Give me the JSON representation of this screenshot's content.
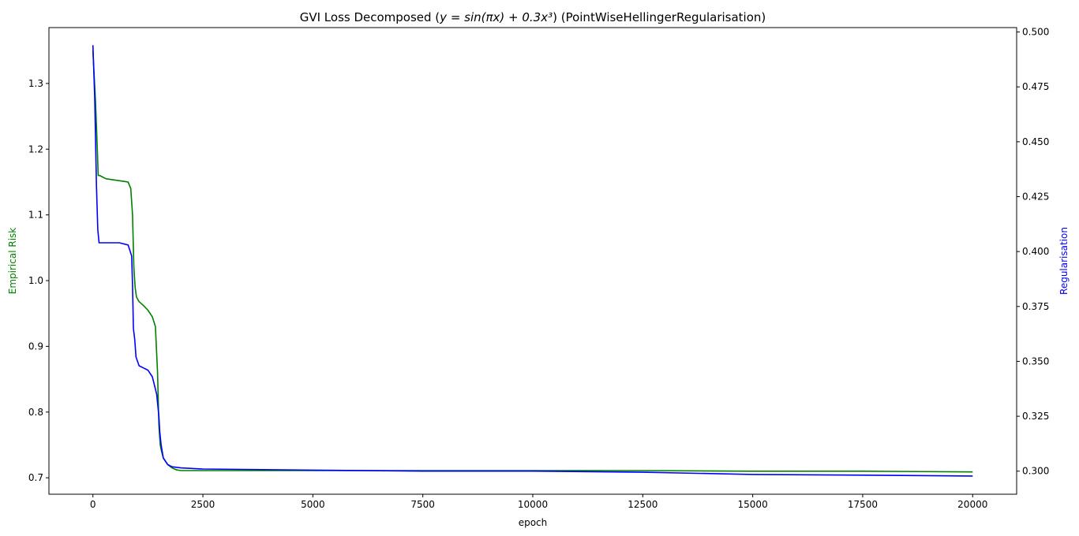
{
  "chart_data": {
    "type": "line",
    "title_main": "GVI Loss Decomposed (",
    "title_math": "y = sin(πx) + 0.3x³",
    "title_suffix": ") (PointWiseHellingerRegularisation)",
    "xlabel": "epoch",
    "ylabel_left": "Empirical Risk",
    "ylabel_right": "Regularisation",
    "xlim": [
      -1000,
      21000
    ],
    "ylim_left": [
      0.675,
      1.385
    ],
    "ylim_right": [
      0.2895,
      0.502
    ],
    "x_ticks": [
      "0",
      "2500",
      "5000",
      "7500",
      "10000",
      "12500",
      "15000",
      "17500",
      "20000"
    ],
    "y_left_ticks": [
      "0.7",
      "0.8",
      "0.9",
      "1.0",
      "1.1",
      "1.2",
      "1.3"
    ],
    "y_right_ticks": [
      "0.300",
      "0.325",
      "0.350",
      "0.375",
      "0.400",
      "0.425",
      "0.450",
      "0.475",
      "0.500"
    ],
    "grid": false,
    "colors": {
      "empirical_risk": "#008000",
      "regularisation": "#0000ff",
      "axes": "#000000"
    },
    "series": [
      {
        "name": "Empirical Risk",
        "axis": "left",
        "x": [
          0,
          60,
          100,
          120,
          150,
          300,
          500,
          700,
          800,
          860,
          900,
          930,
          960,
          990,
          1050,
          1150,
          1250,
          1350,
          1420,
          1470,
          1500,
          1530,
          1560,
          1600,
          1650,
          1700,
          1800,
          1900,
          2000,
          2500,
          5000,
          7500,
          10000,
          12500,
          15000,
          17500,
          20000
        ],
        "values": [
          1.35,
          1.27,
          1.2,
          1.16,
          1.16,
          1.155,
          1.153,
          1.151,
          1.15,
          1.14,
          1.1,
          1.02,
          0.99,
          0.975,
          0.968,
          0.962,
          0.955,
          0.945,
          0.93,
          0.86,
          0.78,
          0.75,
          0.74,
          0.73,
          0.725,
          0.72,
          0.715,
          0.712,
          0.711,
          0.711,
          0.711,
          0.711,
          0.711,
          0.711,
          0.71,
          0.71,
          0.709
        ]
      },
      {
        "name": "Regularisation",
        "axis": "right",
        "x": [
          0,
          40,
          80,
          110,
          140,
          200,
          400,
          600,
          800,
          880,
          900,
          920,
          950,
          980,
          1050,
          1150,
          1250,
          1350,
          1450,
          1500,
          1520,
          1550,
          1600,
          1700,
          1800,
          2000,
          2500,
          5000,
          7500,
          10000,
          12500,
          15000,
          17500,
          20000
        ],
        "values": [
          0.494,
          0.47,
          0.43,
          0.41,
          0.404,
          0.404,
          0.404,
          0.404,
          0.403,
          0.398,
          0.385,
          0.365,
          0.36,
          0.352,
          0.348,
          0.347,
          0.346,
          0.343,
          0.335,
          0.325,
          0.318,
          0.312,
          0.306,
          0.303,
          0.302,
          0.3015,
          0.301,
          0.3005,
          0.3,
          0.3,
          0.2995,
          0.2985,
          0.2982,
          0.2978
        ]
      }
    ]
  }
}
